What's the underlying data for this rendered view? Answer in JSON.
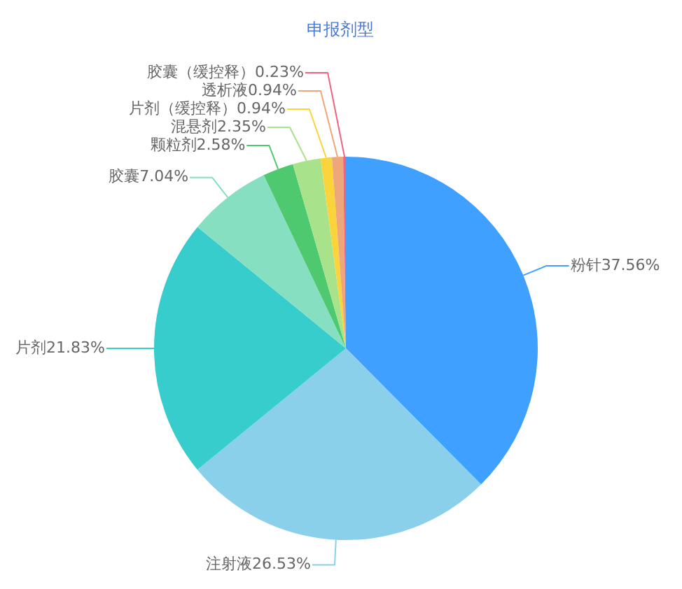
{
  "chart_data": {
    "type": "pie",
    "title": "申报剂型",
    "categories": [
      "粉针",
      "注射液",
      "片剂",
      "胶囊",
      "颗粒剂",
      "混悬剂",
      "片剂（缓控释）",
      "透析液",
      "胶囊（缓控释）"
    ],
    "values": [
      37.56,
      26.53,
      21.83,
      7.04,
      2.58,
      2.35,
      0.94,
      0.94,
      0.23
    ],
    "colors": [
      "#3fa0ff",
      "#8bd0ea",
      "#36cdcc",
      "#86dfc0",
      "#4ec970",
      "#a8e28a",
      "#fbd33a",
      "#eea77a",
      "#f0647f"
    ],
    "value_labels": [
      "37.56%",
      "26.53%",
      "21.83%",
      "7.04%",
      "2.58%",
      "2.35%",
      "0.94%",
      "0.94%",
      "0.23%"
    ],
    "legend": false
  }
}
